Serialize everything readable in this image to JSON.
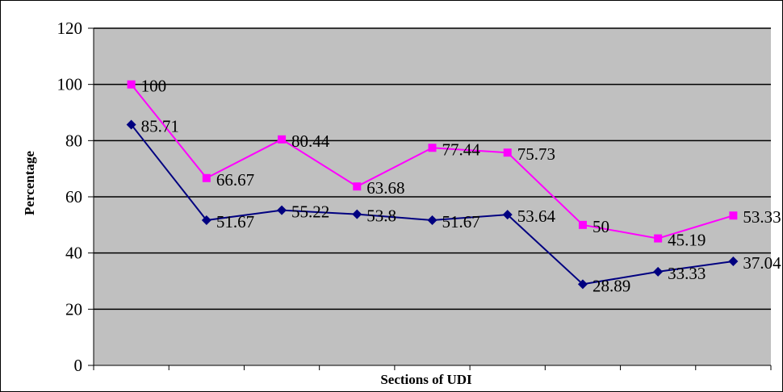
{
  "chart_data": {
    "type": "line",
    "title": "",
    "xlabel": "Sections of UDI",
    "ylabel": "Percentage",
    "ylim": [
      0,
      120
    ],
    "yticks": [
      "0",
      "20",
      "40",
      "60",
      "80",
      "100",
      "120"
    ],
    "x_points": 9,
    "grid": true,
    "legend": "none",
    "series": [
      {
        "values": [
          100,
          66.67,
          80.44,
          63.68,
          77.44,
          75.73,
          50,
          45.19,
          53.33
        ],
        "labels": [
          "100",
          "66.67",
          "80.44",
          "63.68",
          "77.44",
          "75.73",
          "50",
          "45.19",
          "53.33"
        ],
        "color": "#ff00ff",
        "marker": "square"
      },
      {
        "values": [
          85.71,
          51.67,
          55.22,
          53.8,
          51.67,
          53.64,
          28.89,
          33.33,
          37.04
        ],
        "labels": [
          "85.71",
          "51.67",
          "55.22",
          "53.8",
          "51.67",
          "53.64",
          "28.89",
          "33.33",
          "37.04"
        ],
        "color": "#000080",
        "marker": "diamond"
      }
    ],
    "plot_background": "#c0c0c0"
  }
}
